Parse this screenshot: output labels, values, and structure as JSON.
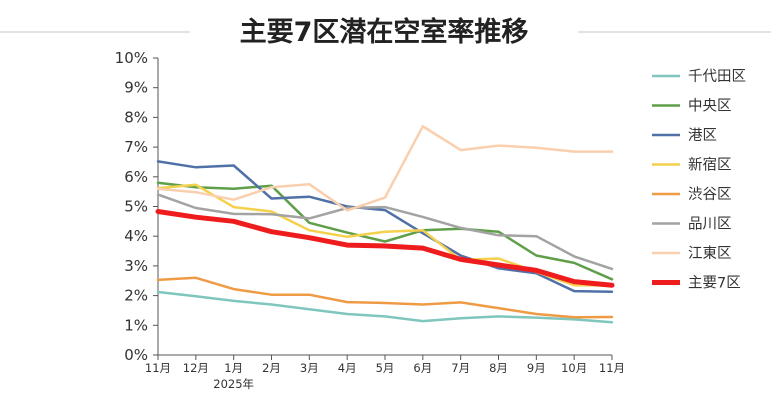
{
  "chart_data": {
    "type": "line",
    "title": "主要7区潜在空室率推移",
    "xlabel": "",
    "ylabel": "",
    "x": [
      "11月",
      "12月",
      "1月",
      "2月",
      "3月",
      "4月",
      "5月",
      "6月",
      "7月",
      "8月",
      "9月",
      "10月",
      "11月"
    ],
    "x_sublabels": {
      "2": "2025年"
    },
    "y_ticks": [
      "0%",
      "1%",
      "2%",
      "3%",
      "4%",
      "5%",
      "6%",
      "7%",
      "8%",
      "9%",
      "10%"
    ],
    "ylim": [
      0,
      10
    ],
    "grid": false,
    "legend_position": "right",
    "series": [
      {
        "name": "千代田区",
        "color": "#7fc6be",
        "width": 2.5,
        "values": [
          2.12,
          1.98,
          1.82,
          1.7,
          1.54,
          1.38,
          1.3,
          1.14,
          1.24,
          1.3,
          1.26,
          1.2,
          1.1
        ]
      },
      {
        "name": "中央区",
        "color": "#5f9f4a",
        "width": 2.5,
        "values": [
          5.8,
          5.65,
          5.6,
          5.7,
          4.45,
          4.12,
          3.82,
          4.2,
          4.25,
          4.15,
          3.35,
          3.1,
          2.55
        ]
      },
      {
        "name": "港区",
        "color": "#4f71a8",
        "width": 2.5,
        "values": [
          6.52,
          6.32,
          6.38,
          5.27,
          5.33,
          5.0,
          4.88,
          4.1,
          3.35,
          2.92,
          2.75,
          2.15,
          2.13
        ]
      },
      {
        "name": "新宿区",
        "color": "#f4d04d",
        "width": 2.5,
        "values": [
          5.62,
          5.73,
          4.98,
          4.83,
          4.2,
          3.98,
          4.15,
          4.2,
          3.2,
          3.25,
          2.8,
          2.35,
          2.34
        ]
      },
      {
        "name": "渋谷区",
        "color": "#ef9b45",
        "width": 2.5,
        "values": [
          2.53,
          2.6,
          2.22,
          2.03,
          2.03,
          1.78,
          1.75,
          1.7,
          1.77,
          1.58,
          1.38,
          1.27,
          1.28
        ]
      },
      {
        "name": "品川区",
        "color": "#a3a3a3",
        "width": 2.5,
        "values": [
          5.4,
          4.95,
          4.75,
          4.74,
          4.6,
          4.95,
          4.98,
          4.65,
          4.28,
          4.03,
          4.0,
          3.32,
          2.9
        ]
      },
      {
        "name": "江東区",
        "color": "#f9cfae",
        "width": 2.5,
        "values": [
          5.6,
          5.48,
          5.23,
          5.65,
          5.75,
          4.87,
          5.3,
          7.7,
          6.9,
          7.05,
          6.98,
          6.85,
          6.85
        ]
      },
      {
        "name": "主要7区",
        "color": "#ee1c1c",
        "width": 5,
        "values": [
          4.83,
          4.64,
          4.5,
          4.15,
          3.95,
          3.7,
          3.67,
          3.6,
          3.22,
          3.03,
          2.85,
          2.47,
          2.35
        ]
      }
    ]
  }
}
